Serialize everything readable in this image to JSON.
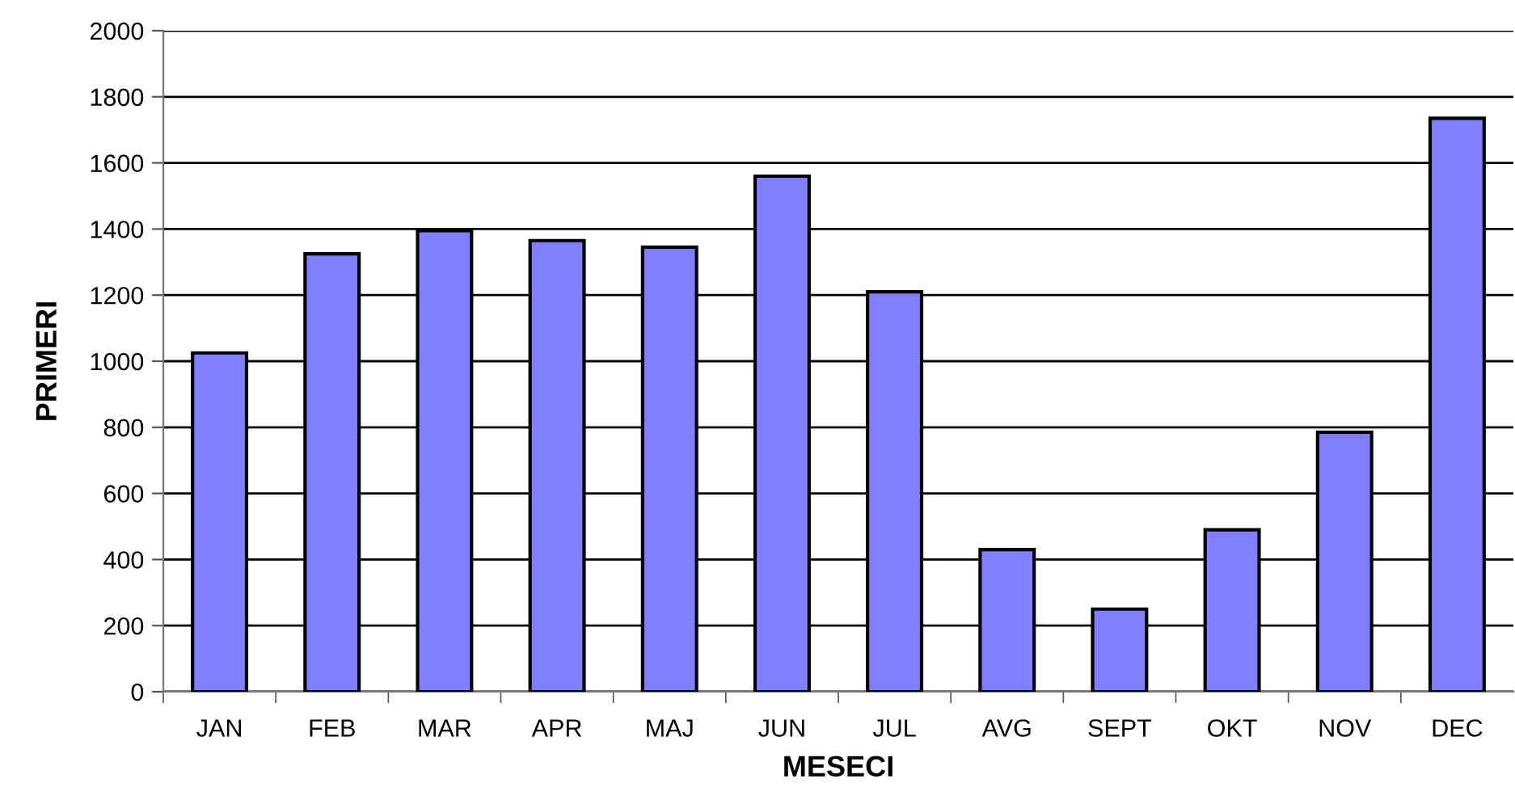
{
  "chart_data": {
    "type": "bar",
    "xlabel": "MESECI",
    "ylabel": "PRIMERI",
    "categories": [
      "JAN",
      "FEB",
      "MAR",
      "APR",
      "MAJ",
      "JUN",
      "JUL",
      "AVG",
      "SEPT",
      "OKT",
      "NOV",
      "DEC"
    ],
    "values": [
      1025,
      1325,
      1395,
      1365,
      1345,
      1560,
      1210,
      430,
      250,
      490,
      785,
      1735
    ],
    "color": "#8080ff",
    "ylim": [
      0,
      2000
    ],
    "yticks": [
      0,
      200,
      400,
      600,
      800,
      1000,
      1200,
      1400,
      1600,
      1800,
      2000
    ],
    "grid": "y",
    "legend": false
  }
}
